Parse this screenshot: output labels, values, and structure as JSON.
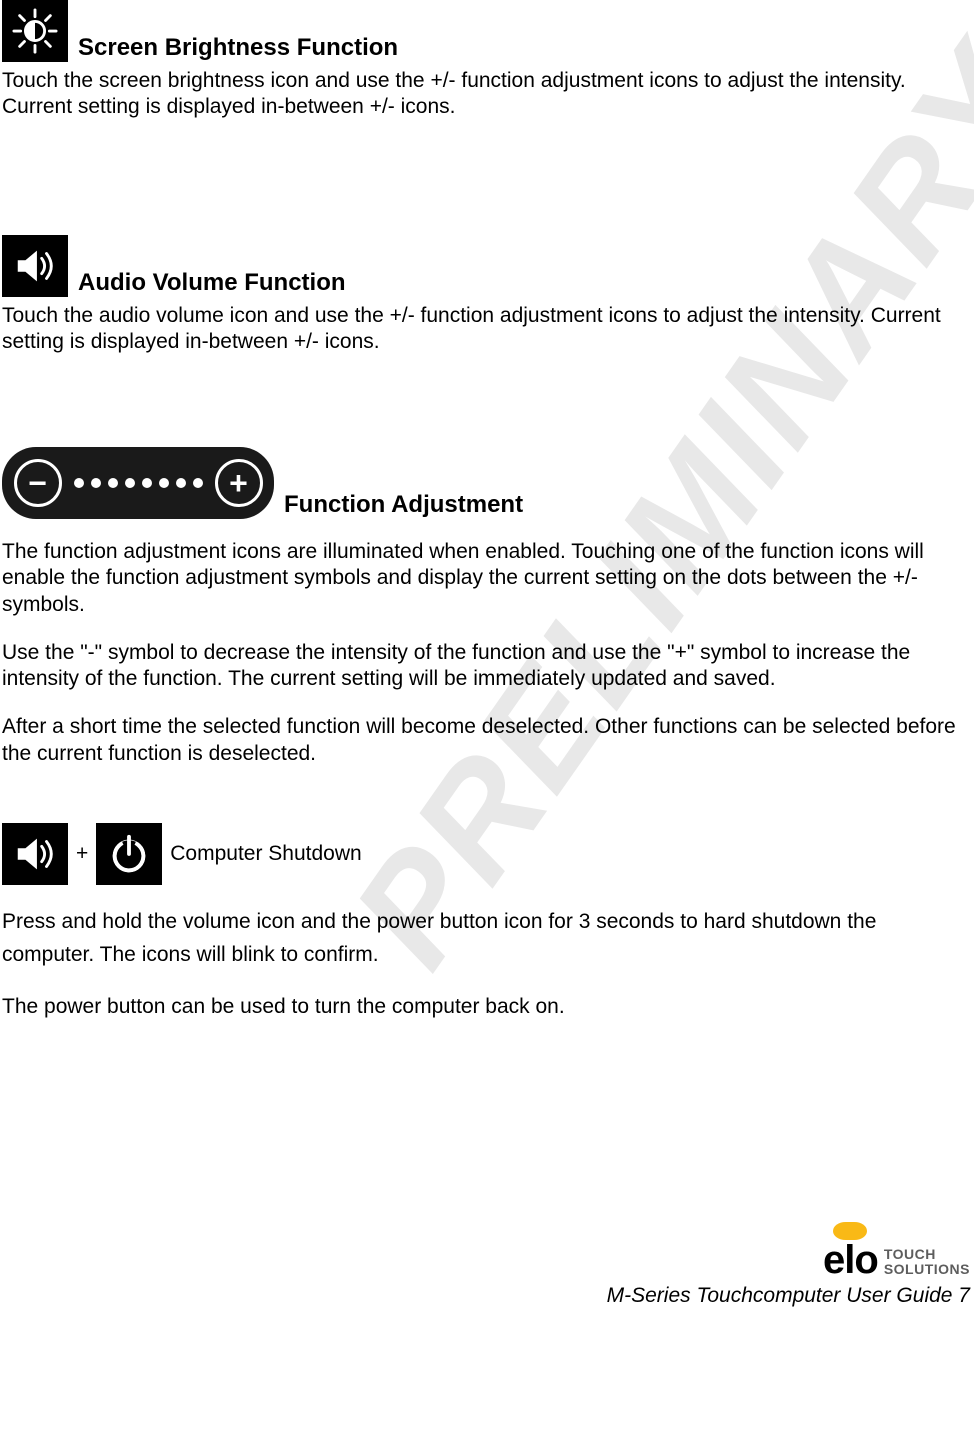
{
  "watermark": "PRELIMINARY",
  "sections": {
    "brightness": {
      "title": "Screen Brightness Function",
      "body": "Touch the screen brightness icon and use the +/- function adjustment icons to adjust the intensity.  Current setting is displayed in-between +/- icons."
    },
    "volume": {
      "title": "Audio Volume Function",
      "body": "Touch the audio volume icon and use the +/- function adjustment icons to adjust the intensity.  Current setting is displayed in-between +/- icons."
    },
    "adjustment": {
      "title": "Function Adjustment",
      "p1": "The function adjustment icons are illuminated when enabled.  Touching one of the function icons will enable the function adjustment symbols and display the current setting on the dots between the +/- symbols.",
      "p2": "Use the \"-\" symbol to decrease the intensity of the function and use the \"+\" symbol to increase the intensity of the function.  The current setting will be immediately updated and saved.",
      "p3": "After a short time the selected function will become deselected.  Other functions can be selected before the current function is deselected."
    },
    "shutdown": {
      "plus": "+",
      "title": "Computer Shutdown",
      "p1": "Press and hold the volume icon and the power button icon for 3 seconds to hard shutdown the computer.  The icons will blink to confirm.",
      "p2": "The power button can be used to turn the computer back on."
    }
  },
  "adjuster": {
    "minus": "−",
    "plus": "+",
    "dots": 8
  },
  "footer": {
    "logo_text": "elo",
    "logo_sub1": "TOUCH",
    "logo_sub2": "SOLUTIONS",
    "line": "M-Series Touchcomputer User Guide 7"
  },
  "colors": {
    "icon_bg": "#000000",
    "icon_fg": "#ffffff",
    "watermark": "#e8e8e8",
    "brand_yellow": "#f9b916",
    "text": "#000000"
  }
}
